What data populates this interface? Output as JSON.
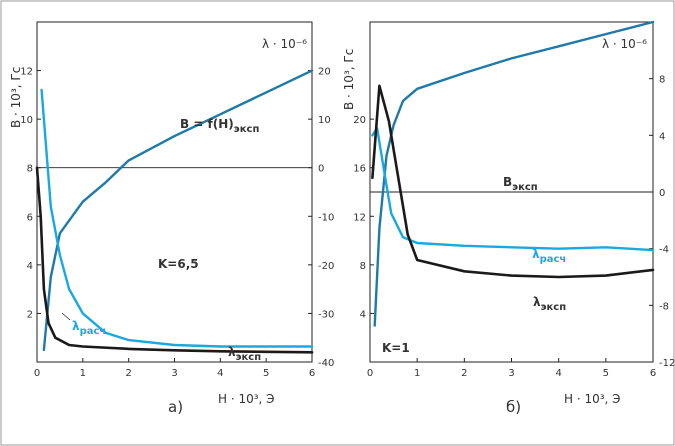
{
  "chart_data": [
    {
      "panel": "а)",
      "type": "line",
      "title": "",
      "xlabel": "H · 10³, Э",
      "ylabel_left": "B · 10³, Гс",
      "ylabel_right": "λ · 10⁻⁶",
      "annotation": "K=6,5",
      "xlim": [
        0,
        6
      ],
      "ylim_left": [
        0,
        14
      ],
      "ylim_right": [
        -40,
        30
      ],
      "x_ticks": [
        "0",
        "1",
        "2",
        "3",
        "4",
        "5",
        "6"
      ],
      "y_left_ticks": [
        "2",
        "4",
        "6",
        "8",
        "10",
        "12"
      ],
      "y_right_ticks": [
        "-40",
        "-30",
        "-20",
        "-10",
        "0",
        "10",
        "20"
      ],
      "series": [
        {
          "name": "B = f(H)эксп",
          "axis": "left",
          "color": "#1f7aa8",
          "points": [
            [
              0.15,
              0.5
            ],
            [
              0.3,
              3.5
            ],
            [
              0.5,
              5.3
            ],
            [
              1,
              6.6
            ],
            [
              1.5,
              7.4
            ],
            [
              2,
              8.3
            ],
            [
              3,
              9.3
            ],
            [
              4,
              10.2
            ],
            [
              5,
              11.1
            ],
            [
              6,
              12
            ]
          ]
        },
        {
          "name": "λрасч",
          "axis": "right",
          "color": "#1aa8e0",
          "points": [
            [
              0.1,
              16
            ],
            [
              0.3,
              -8
            ],
            [
              0.5,
              -18
            ],
            [
              0.7,
              -25
            ],
            [
              1,
              -30
            ],
            [
              1.5,
              -34
            ],
            [
              2,
              -35.5
            ],
            [
              3,
              -36.5
            ],
            [
              4,
              -36.8
            ],
            [
              5,
              -36.8
            ],
            [
              6,
              -36.8
            ]
          ]
        },
        {
          "name": "λэксп",
          "axis": "right",
          "color": "#1a1a1a",
          "points": [
            [
              0,
              0
            ],
            [
              0.08,
              -10
            ],
            [
              0.15,
              -25
            ],
            [
              0.25,
              -32
            ],
            [
              0.4,
              -35
            ],
            [
              0.7,
              -36.5
            ],
            [
              1,
              -36.8
            ],
            [
              2,
              -37.3
            ],
            [
              3,
              -37.6
            ],
            [
              4,
              -37.8
            ],
            [
              5,
              -37.9
            ],
            [
              6,
              -38
            ]
          ]
        }
      ],
      "grid": false,
      "reference_line": "λ = 0"
    },
    {
      "panel": "б)",
      "type": "line",
      "title": "",
      "xlabel": "H · 10³, Э",
      "ylabel_left": "B · 10³, Гс",
      "ylabel_right": "λ · 10⁻⁶",
      "annotation": "K=1",
      "xlim": [
        0,
        6
      ],
      "ylim_left": [
        0,
        28
      ],
      "ylim_right": [
        -12,
        12
      ],
      "x_ticks": [
        "0",
        "1",
        "2",
        "3",
        "4",
        "5",
        "6"
      ],
      "y_left_ticks": [
        "4",
        "8",
        "12",
        "16",
        "20"
      ],
      "y_right_ticks": [
        "-12",
        "-8",
        "-4",
        "0",
        "4",
        "8"
      ],
      "series": [
        {
          "name": "Bэксп",
          "axis": "left",
          "color": "#1f7aa8",
          "points": [
            [
              0.1,
              3
            ],
            [
              0.2,
              11
            ],
            [
              0.35,
              17
            ],
            [
              0.5,
              19.5
            ],
            [
              0.7,
              21.5
            ],
            [
              1,
              22.5
            ],
            [
              2,
              23.8
            ],
            [
              3,
              25
            ],
            [
              4,
              26
            ],
            [
              5,
              27
            ],
            [
              6,
              28
            ]
          ]
        },
        {
          "name": "λрасч",
          "axis": "right",
          "color": "#1aa8e0",
          "points": [
            [
              0.05,
              4
            ],
            [
              0.15,
              4.5
            ],
            [
              0.3,
              1.5
            ],
            [
              0.45,
              -1.5
            ],
            [
              0.7,
              -3.2
            ],
            [
              1,
              -3.6
            ],
            [
              2,
              -3.8
            ],
            [
              3,
              -3.9
            ],
            [
              4,
              -4
            ],
            [
              5,
              -3.9
            ],
            [
              6,
              -4.1
            ]
          ]
        },
        {
          "name": "λэксп",
          "axis": "right",
          "color": "#1a1a1a",
          "points": [
            [
              0.05,
              1
            ],
            [
              0.2,
              7.5
            ],
            [
              0.4,
              5
            ],
            [
              0.6,
              1
            ],
            [
              0.8,
              -3
            ],
            [
              1,
              -4.8
            ],
            [
              2,
              -5.6
            ],
            [
              3,
              -5.9
            ],
            [
              4,
              -6
            ],
            [
              5,
              -5.9
            ],
            [
              6,
              -5.5
            ]
          ]
        }
      ],
      "grid": false,
      "reference_line": "λ = 0"
    }
  ]
}
